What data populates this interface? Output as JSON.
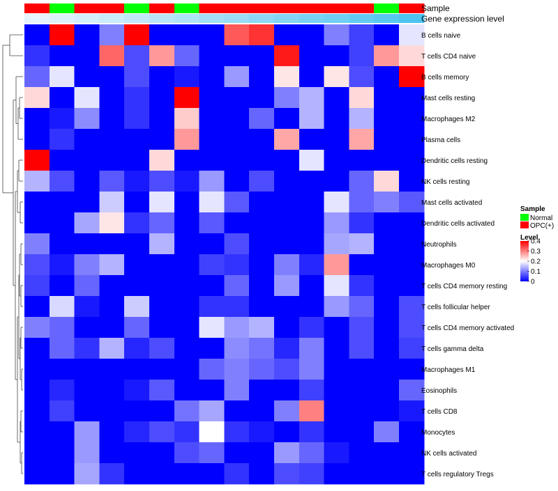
{
  "chart_data": {
    "type": "heatmap",
    "title": "",
    "annotation_labels": [
      "Sample",
      "Gene expression level"
    ],
    "sample_annotation": [
      "OPC(+)",
      "Normal",
      "OPC(+)",
      "OPC(+)",
      "Normal",
      "OPC(+)",
      "Normal",
      "OPC(+)",
      "OPC(+)",
      "OPC(+)",
      "OPC(+)",
      "OPC(+)",
      "OPC(+)",
      "OPC(+)",
      "Normal",
      "OPC(+)"
    ],
    "expression_annotation": [
      0.02,
      0.05,
      0.08,
      0.11,
      0.14,
      0.17,
      0.2,
      0.24,
      0.27,
      0.31,
      0.34,
      0.38,
      0.41,
      0.45,
      0.48,
      0.52
    ],
    "rows": [
      "B cells naive",
      "T cells CD4 naive",
      "B cells memory",
      "Mast cells resting",
      "Macrophages M2",
      "Plasma cells",
      "Dendritic cells resting",
      "NK cells resting",
      "Mast cells activated",
      "Dendritic cells activated",
      "Neutrophils",
      "Macrophages M0",
      "T cells CD4 memory resting",
      "T cells follicular helper",
      "T cells CD4 memory activated",
      "T cells gamma delta",
      "Macrophages M1",
      "Eosinophils",
      "T cells CD8",
      "Monocytes",
      "NK cells activated",
      "T cells regulatory  Tregs"
    ],
    "values": [
      [
        0,
        0.4,
        0,
        0.1,
        0.4,
        0,
        0,
        0,
        0.33,
        0.36,
        0,
        0,
        0.1,
        0.05,
        0,
        0.18
      ],
      [
        0.04,
        0,
        0,
        0.32,
        0.06,
        0.28,
        0.08,
        0,
        0,
        0,
        0.38,
        0,
        0,
        0.05,
        0.28,
        0.23
      ],
      [
        0.08,
        0.18,
        0,
        0,
        0.06,
        0,
        0.02,
        0,
        0.12,
        0,
        0.22,
        0,
        0.22,
        0.06,
        0,
        0.4
      ],
      [
        0.23,
        0,
        0.18,
        0,
        0.04,
        0,
        0.4,
        0,
        0,
        0,
        0.1,
        0.14,
        0,
        0.23,
        0,
        0
      ],
      [
        0,
        0.02,
        0.11,
        0,
        0.04,
        0,
        0.24,
        0,
        0,
        0.08,
        0,
        0.14,
        0,
        0.14,
        0,
        0
      ],
      [
        0,
        0.04,
        0,
        0,
        0,
        0,
        0.28,
        0,
        0,
        0,
        0.27,
        0,
        0,
        0.27,
        0,
        0
      ],
      [
        0.4,
        0,
        0,
        0,
        0,
        0.23,
        0,
        0,
        0,
        0,
        0,
        0.18,
        0,
        0,
        0,
        0
      ],
      [
        0.14,
        0.06,
        0,
        0.07,
        0.02,
        0.06,
        0.02,
        0.12,
        0,
        0.06,
        0,
        0,
        0,
        0.08,
        0.23,
        0
      ],
      [
        0,
        0,
        0,
        0.16,
        0,
        0.18,
        0,
        0.18,
        0.07,
        0,
        0,
        0,
        0.18,
        0.08,
        0.1,
        0.07
      ],
      [
        0,
        0,
        0.13,
        0.22,
        0.04,
        0.08,
        0,
        0.07,
        0,
        0,
        0,
        0,
        0.12,
        0.04,
        0,
        0
      ],
      [
        0.1,
        0,
        0,
        0,
        0,
        0.14,
        0,
        0,
        0.06,
        0,
        0,
        0,
        0.13,
        0.14,
        0,
        0
      ],
      [
        0.06,
        0.02,
        0.1,
        0.14,
        0,
        0,
        0,
        0.05,
        0.04,
        0,
        0.1,
        0.03,
        0.28,
        0,
        0,
        0
      ],
      [
        0.05,
        0,
        0.08,
        0,
        0,
        0,
        0,
        0,
        0.08,
        0,
        0.12,
        0,
        0.18,
        0.04,
        0,
        0
      ],
      [
        0,
        0.17,
        0.02,
        0,
        0.16,
        0,
        0,
        0.04,
        0.04,
        0,
        0,
        0,
        0.12,
        0.08,
        0,
        0.06
      ],
      [
        0.1,
        0.08,
        0,
        0,
        0.08,
        0,
        0,
        0.18,
        0.12,
        0.14,
        0,
        0.04,
        0,
        0.06,
        0,
        0.06
      ],
      [
        0,
        0.08,
        0.04,
        0.14,
        0.03,
        0.06,
        0,
        0,
        0.11,
        0.09,
        0.03,
        0.1,
        0,
        0.06,
        0,
        0.05
      ],
      [
        0,
        0,
        0,
        0,
        0,
        0,
        0,
        0.08,
        0.1,
        0.08,
        0.06,
        0.1,
        0,
        0,
        0,
        0
      ],
      [
        0,
        0.03,
        0,
        0,
        0.02,
        0.07,
        0,
        0,
        0.1,
        0,
        0,
        0.05,
        0,
        0,
        0,
        0.08
      ],
      [
        0,
        0.05,
        0,
        0,
        0,
        0,
        0.09,
        0.13,
        0,
        0,
        0.1,
        0.3,
        0,
        0,
        0,
        0.02
      ],
      [
        0,
        0,
        0.12,
        0,
        0.03,
        0.06,
        0.04,
        0.2,
        0.04,
        0.02,
        0,
        0.04,
        0,
        0,
        0.1,
        0
      ],
      [
        0,
        0,
        0.12,
        0,
        0,
        0,
        0.06,
        0.08,
        0,
        0,
        0.12,
        0.08,
        0.02,
        0,
        0,
        0
      ],
      [
        0,
        0,
        0.13,
        0.04,
        0,
        0,
        0,
        0,
        0.04,
        0,
        0.06,
        0.05,
        0,
        0,
        0,
        0
      ]
    ],
    "legend": {
      "sample_title": "Sample",
      "sample_entries": [
        {
          "label": "Normal",
          "color": "#00ff00"
        },
        {
          "label": "OPC(+)",
          "color": "#ff0000"
        }
      ],
      "level_title": "Level",
      "level_ticks": [
        0.4,
        0.3,
        0.2,
        0.1,
        0
      ],
      "level_tick_labels": [
        "0.4",
        "0.3",
        "0.2",
        "0.1",
        "0"
      ],
      "range": [
        0,
        0.4
      ]
    },
    "colors": {
      "low": "#0000ff",
      "mid": "#ffffff",
      "high": "#ff0000",
      "expr_low": "#e6f4fc",
      "expr_high": "#4dc4f0",
      "dendrogram": "#444444"
    }
  }
}
